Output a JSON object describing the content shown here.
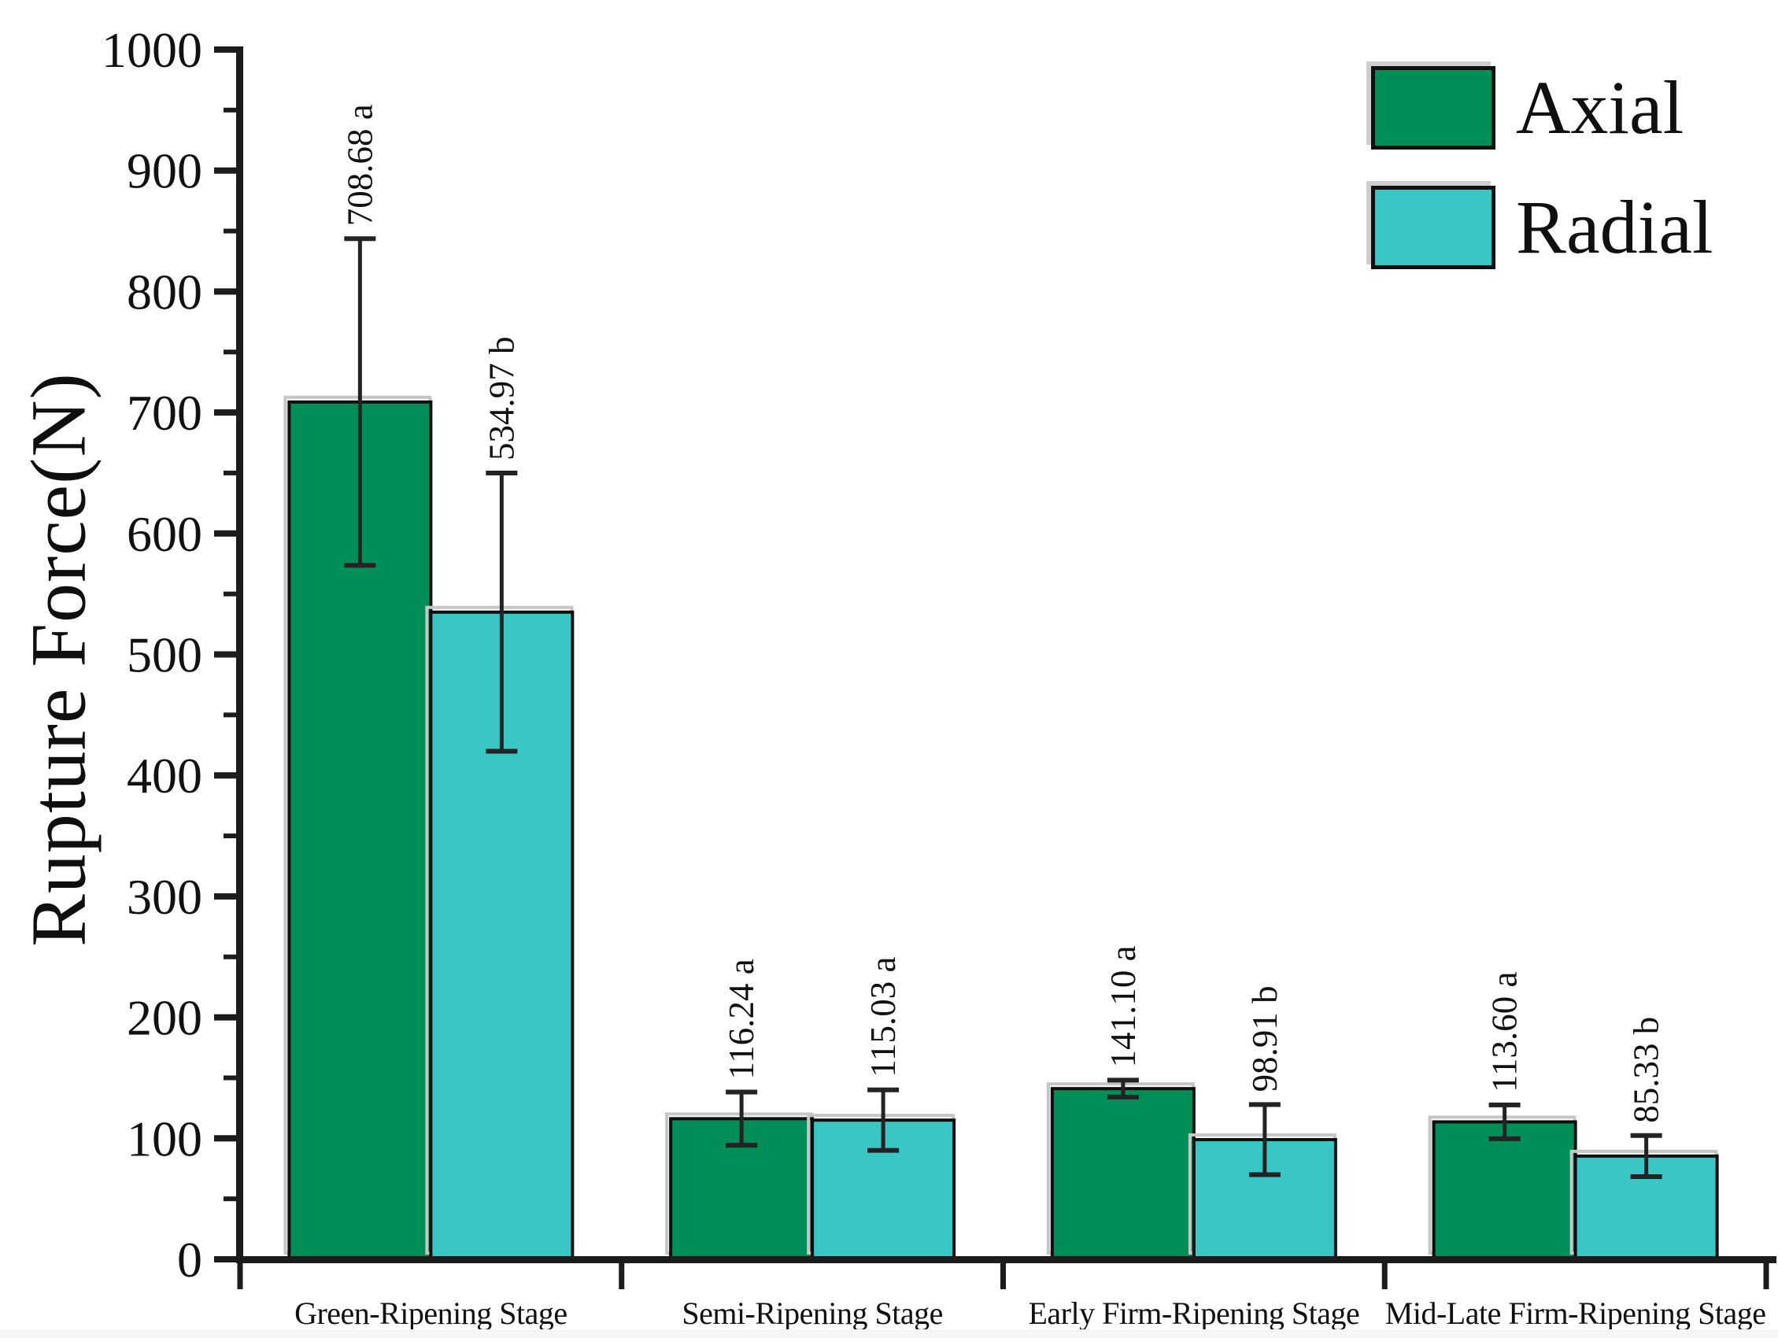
{
  "figure": {
    "background": "#ffffff",
    "axis_color": "#1c1c1c",
    "text_color": "#111111"
  },
  "chart_data": {
    "type": "bar",
    "title": "",
    "xlabel": "",
    "ylabel": "Rupture Force(N)",
    "ylim": [
      0,
      1000
    ],
    "ytick_step": 100,
    "yminor_step": 50,
    "grid": false,
    "legend_position": "top-right",
    "categories": [
      "Green-Ripening Stage",
      "Semi-Ripening Stage",
      "Early Firm-Ripening Stage",
      "Mid-Late Firm-Ripening Stage"
    ],
    "series": [
      {
        "name": "Axial",
        "color": "#008E58",
        "values": [
          708.68,
          116.24,
          141.1,
          113.6
        ],
        "errors": [
          135,
          22,
          7,
          14
        ],
        "sig_letters": [
          "a",
          "a",
          "a",
          "a"
        ]
      },
      {
        "name": "Radial",
        "color": "#3BC6C6",
        "values": [
          534.97,
          115.03,
          98.91,
          85.33
        ],
        "errors": [
          115,
          25,
          29,
          17
        ],
        "sig_letters": [
          "b",
          "a",
          "b",
          "b"
        ]
      }
    ],
    "bar_value_labels": [
      [
        "708.68 a",
        "116.24 a",
        "141.10 a",
        "113.60 a"
      ],
      [
        "534.97 b",
        "115.03 a",
        "98.91 b",
        "85.33 b"
      ]
    ],
    "error_bar_color": "#232323",
    "bar_outline_color": "#0f0f0f",
    "shadow_color": "#c6c6c6"
  }
}
